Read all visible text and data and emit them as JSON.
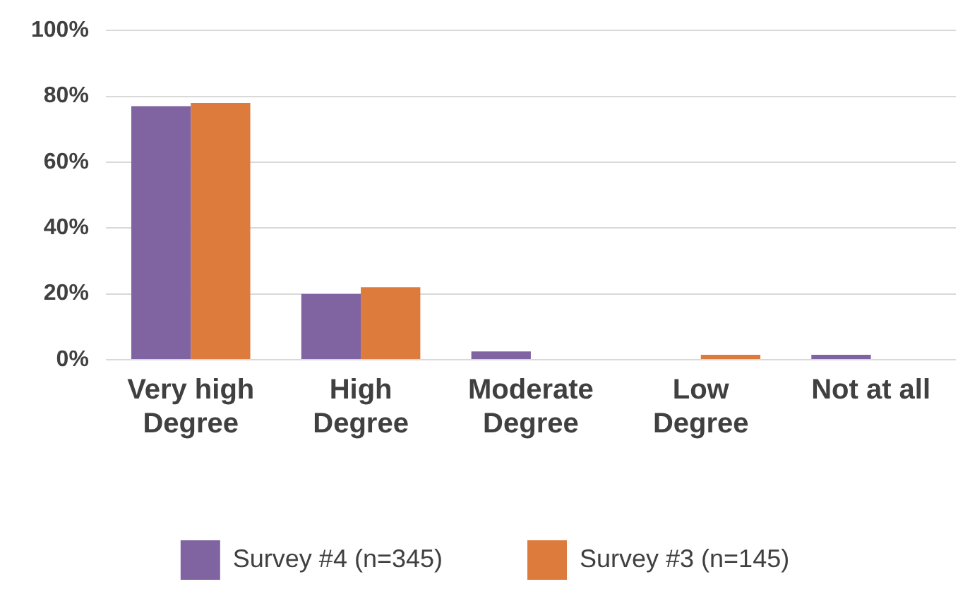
{
  "chart_data": {
    "type": "bar",
    "categories": [
      "Very high\nDegree",
      "High\nDegree",
      "Moderate\nDegree",
      "Low\nDegree",
      "Not at all"
    ],
    "series": [
      {
        "name": "Survey #4 (n=345)",
        "color": "#8064a2",
        "values": [
          77,
          20,
          2.5,
          null,
          1.5
        ]
      },
      {
        "name": "Survey #3 (n=145)",
        "color": "#dd7b3d",
        "values": [
          78,
          22,
          null,
          1.5,
          null
        ]
      }
    ],
    "ylim": [
      0,
      100
    ],
    "yticks": [
      {
        "value": 0,
        "label": "0%"
      },
      {
        "value": 20,
        "label": "20%"
      },
      {
        "value": 40,
        "label": "40%"
      },
      {
        "value": 60,
        "label": "60%"
      },
      {
        "value": 80,
        "label": "80%"
      },
      {
        "value": 100,
        "label": "100%"
      }
    ],
    "grid": "y",
    "legend": "bottom"
  }
}
